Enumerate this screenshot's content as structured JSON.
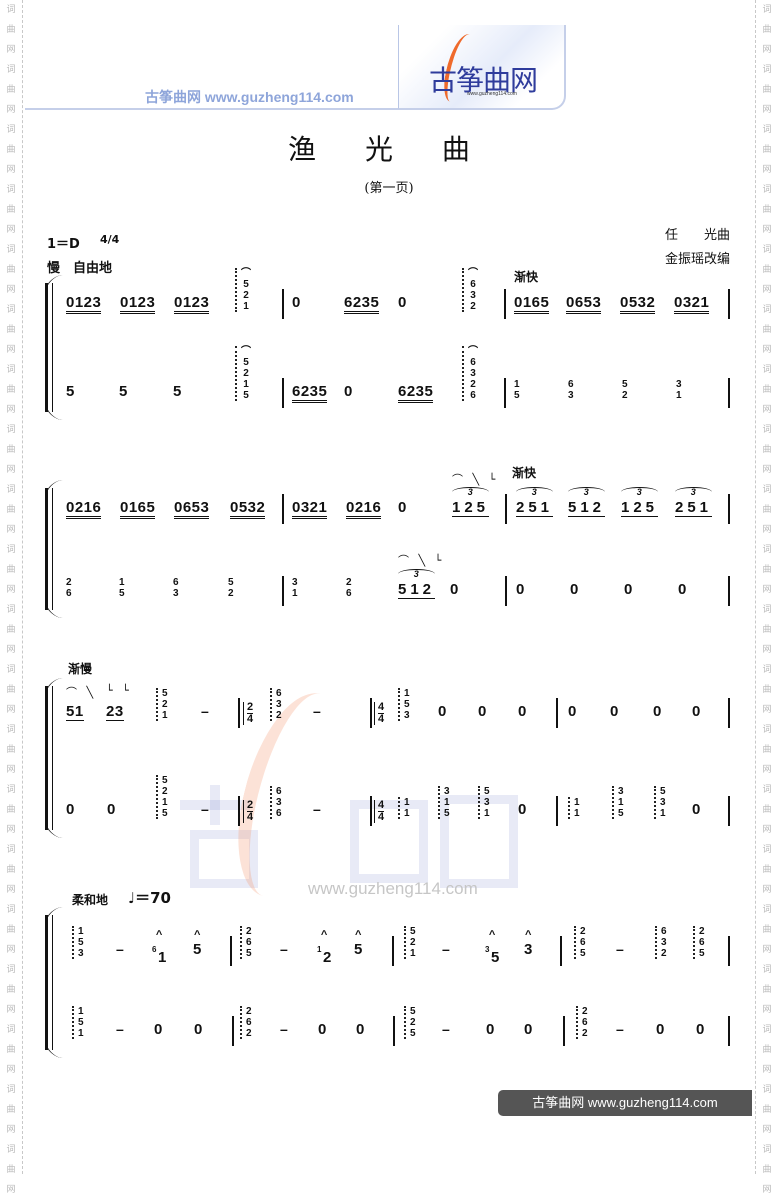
{
  "side_watermark": "词曲网",
  "header": {
    "site_text": "古筝曲网  www.guzheng114.com",
    "logo_text": "古筝曲网",
    "logo_url": "www.guzheng114.com",
    "colors": {
      "site_blue": "#8ea5da",
      "logo_blue": "#2f3c9c",
      "logo_orange": "#ef6a2c"
    }
  },
  "title": "渔 光 曲",
  "subtitle": "(第一页)",
  "key_signature": "1＝D",
  "time_signature": "4/4",
  "tempo_text": "慢　自由地",
  "composer": "任　　光曲",
  "arranger": "金振瑶改编",
  "systems": [
    {
      "labels": [
        "渐快"
      ],
      "upper": [
        {
          "t": "0123",
          "u": 2
        },
        {
          "t": "0123",
          "u": 2
        },
        {
          "t": "0123",
          "u": 2
        },
        {
          "c": [
            "5",
            "2",
            "1"
          ],
          "fermata": true
        },
        {
          "b": 1
        },
        {
          "t": "0"
        },
        {
          "t": "6235",
          "u": 2
        },
        {
          "t": "0"
        },
        {
          "c": [
            "6",
            "3",
            "2"
          ],
          "fermata": true
        },
        {
          "b": 1
        },
        {
          "t": "0165",
          "u": 2
        },
        {
          "t": "0653",
          "u": 2
        },
        {
          "t": "0532",
          "u": 2
        },
        {
          "t": "0321",
          "u": 2
        },
        {
          "b": 1
        }
      ],
      "lower": [
        {
          "t": "5"
        },
        {
          "t": "5"
        },
        {
          "t": "5"
        },
        {
          "c": [
            "5",
            "2",
            "1",
            "5"
          ],
          "fermata": true
        },
        {
          "b": 1
        },
        {
          "t": "6235",
          "u": 2
        },
        {
          "t": "0"
        },
        {
          "t": "6235",
          "u": 2
        },
        {
          "c": [
            "6",
            "3",
            "2",
            "6"
          ],
          "fermata": true
        },
        {
          "b": 1
        },
        {
          "c": [
            "1",
            "5"
          ],
          "plain": true
        },
        {
          "c": [
            "6",
            "3"
          ],
          "plain": true
        },
        {
          "c": [
            "5",
            "2"
          ],
          "plain": true
        },
        {
          "c": [
            "3",
            "1"
          ],
          "plain": true
        },
        {
          "b": 1
        }
      ]
    },
    {
      "labels": [
        "渐快",
        "⌒ ╲ └",
        "⌒ ╲ └"
      ],
      "upper": [
        {
          "t": "0216",
          "u": 2
        },
        {
          "t": "0165",
          "u": 2
        },
        {
          "t": "0653",
          "u": 2
        },
        {
          "t": "0532",
          "u": 2
        },
        {
          "b": 1
        },
        {
          "t": "0321",
          "u": 2
        },
        {
          "t": "0216",
          "u": 2
        },
        {
          "t": "0"
        },
        {
          "t": "125",
          "u": 1,
          "tri": "3"
        },
        {
          "b": 1
        },
        {
          "t": "251",
          "u": 1,
          "tri": "3"
        },
        {
          "t": "512",
          "u": 1,
          "tri": "3"
        },
        {
          "t": "125",
          "u": 1,
          "tri": "3"
        },
        {
          "t": "251",
          "u": 1,
          "tri": "3"
        },
        {
          "b": 1
        }
      ],
      "lower": [
        {
          "c": [
            "2",
            "6"
          ],
          "plain": true
        },
        {
          "c": [
            "1",
            "5"
          ],
          "plain": true
        },
        {
          "c": [
            "6",
            "3"
          ],
          "plain": true
        },
        {
          "c": [
            "5",
            "2"
          ],
          "plain": true
        },
        {
          "b": 1
        },
        {
          "c": [
            "3",
            "1"
          ],
          "plain": true
        },
        {
          "c": [
            "2",
            "6"
          ],
          "plain": true
        },
        {
          "t": "512",
          "u": 1,
          "tri": "3"
        },
        {
          "t": "0"
        },
        {
          "b": 1
        },
        {
          "t": "0"
        },
        {
          "t": "0"
        },
        {
          "t": "0"
        },
        {
          "t": "0"
        },
        {
          "b": 1
        }
      ]
    },
    {
      "labels": [
        "渐慢",
        "⌒ ╲",
        "└ └"
      ],
      "upper": [
        {
          "t": "51",
          "u": 1
        },
        {
          "t": "23",
          "u": 1
        },
        {
          "c": [
            "5",
            "2",
            "1"
          ]
        },
        {
          "d": "–"
        },
        {
          "b": 1
        },
        {
          "ts": [
            "2",
            "4"
          ]
        },
        {
          "c": [
            "6",
            "3",
            "2"
          ]
        },
        {
          "d": "–"
        },
        {
          "b": 1
        },
        {
          "ts": [
            "4",
            "4"
          ]
        },
        {
          "c": [
            "1",
            "5",
            "3"
          ]
        },
        {
          "t": "0"
        },
        {
          "t": "0"
        },
        {
          "t": "0"
        },
        {
          "b": 1
        },
        {
          "t": "0"
        },
        {
          "t": "0"
        },
        {
          "t": "0"
        },
        {
          "t": "0"
        },
        {
          "b": 1
        }
      ],
      "lower": [
        {
          "t": "0"
        },
        {
          "t": "0"
        },
        {
          "c": [
            "5",
            "2",
            "1",
            "5"
          ]
        },
        {
          "d": "–"
        },
        {
          "b": 1
        },
        {
          "ts": [
            "2",
            "4"
          ]
        },
        {
          "c": [
            "6",
            "3",
            "6"
          ]
        },
        {
          "d": "–"
        },
        {
          "b": 1
        },
        {
          "ts": [
            "4",
            "4"
          ]
        },
        {
          "c": [
            "1",
            "1"
          ]
        },
        {
          "c": [
            "3",
            "1",
            "5"
          ]
        },
        {
          "c": [
            "5",
            "3",
            "1"
          ]
        },
        {
          "t": "0"
        },
        {
          "b": 1
        },
        {
          "c": [
            "1",
            "1"
          ]
        },
        {
          "c": [
            "3",
            "1",
            "5"
          ]
        },
        {
          "c": [
            "5",
            "3",
            "1"
          ]
        },
        {
          "t": "0"
        },
        {
          "b": 1
        }
      ]
    },
    {
      "labels": [
        "柔和地",
        "♩＝70"
      ],
      "upper": [
        {
          "c": [
            "1",
            "5",
            "3"
          ]
        },
        {
          "d": "–"
        },
        {
          "t": "1",
          "grace": "6",
          "accent": "^"
        },
        {
          "t": "5",
          "accent": "^"
        },
        {
          "b": 1
        },
        {
          "c": [
            "2",
            "6",
            "5"
          ]
        },
        {
          "d": "–"
        },
        {
          "t": "2",
          "grace": "1",
          "accent": "^"
        },
        {
          "t": "5",
          "accent": "^"
        },
        {
          "b": 1
        },
        {
          "c": [
            "5",
            "2",
            "1"
          ]
        },
        {
          "d": "–"
        },
        {
          "t": "5",
          "grace": "3",
          "accent": "^"
        },
        {
          "t": "3",
          "accent": "^"
        },
        {
          "b": 1
        },
        {
          "c": [
            "2",
            "6",
            "5"
          ]
        },
        {
          "d": "–"
        },
        {
          "c": [
            "6",
            "3",
            "2"
          ]
        },
        {
          "c": [
            "2",
            "6",
            "5"
          ]
        },
        {
          "b": 1
        }
      ],
      "lower": [
        {
          "c": [
            "1",
            "5",
            "1"
          ]
        },
        {
          "d": "–"
        },
        {
          "t": "0"
        },
        {
          "t": "0"
        },
        {
          "b": 1
        },
        {
          "c": [
            "2",
            "6",
            "2"
          ]
        },
        {
          "d": "–"
        },
        {
          "t": "0"
        },
        {
          "t": "0"
        },
        {
          "b": 1
        },
        {
          "c": [
            "5",
            "2",
            "5"
          ]
        },
        {
          "d": "–"
        },
        {
          "t": "0"
        },
        {
          "t": "0"
        },
        {
          "b": 1
        },
        {
          "c": [
            "2",
            "6",
            "2"
          ]
        },
        {
          "d": "–"
        },
        {
          "t": "0"
        },
        {
          "t": "0"
        },
        {
          "b": 1
        }
      ]
    }
  ],
  "watermark": {
    "text": "古筝曲网",
    "url": "www.guzheng114.com"
  },
  "footer": "古筝曲网  www.guzheng114.com"
}
